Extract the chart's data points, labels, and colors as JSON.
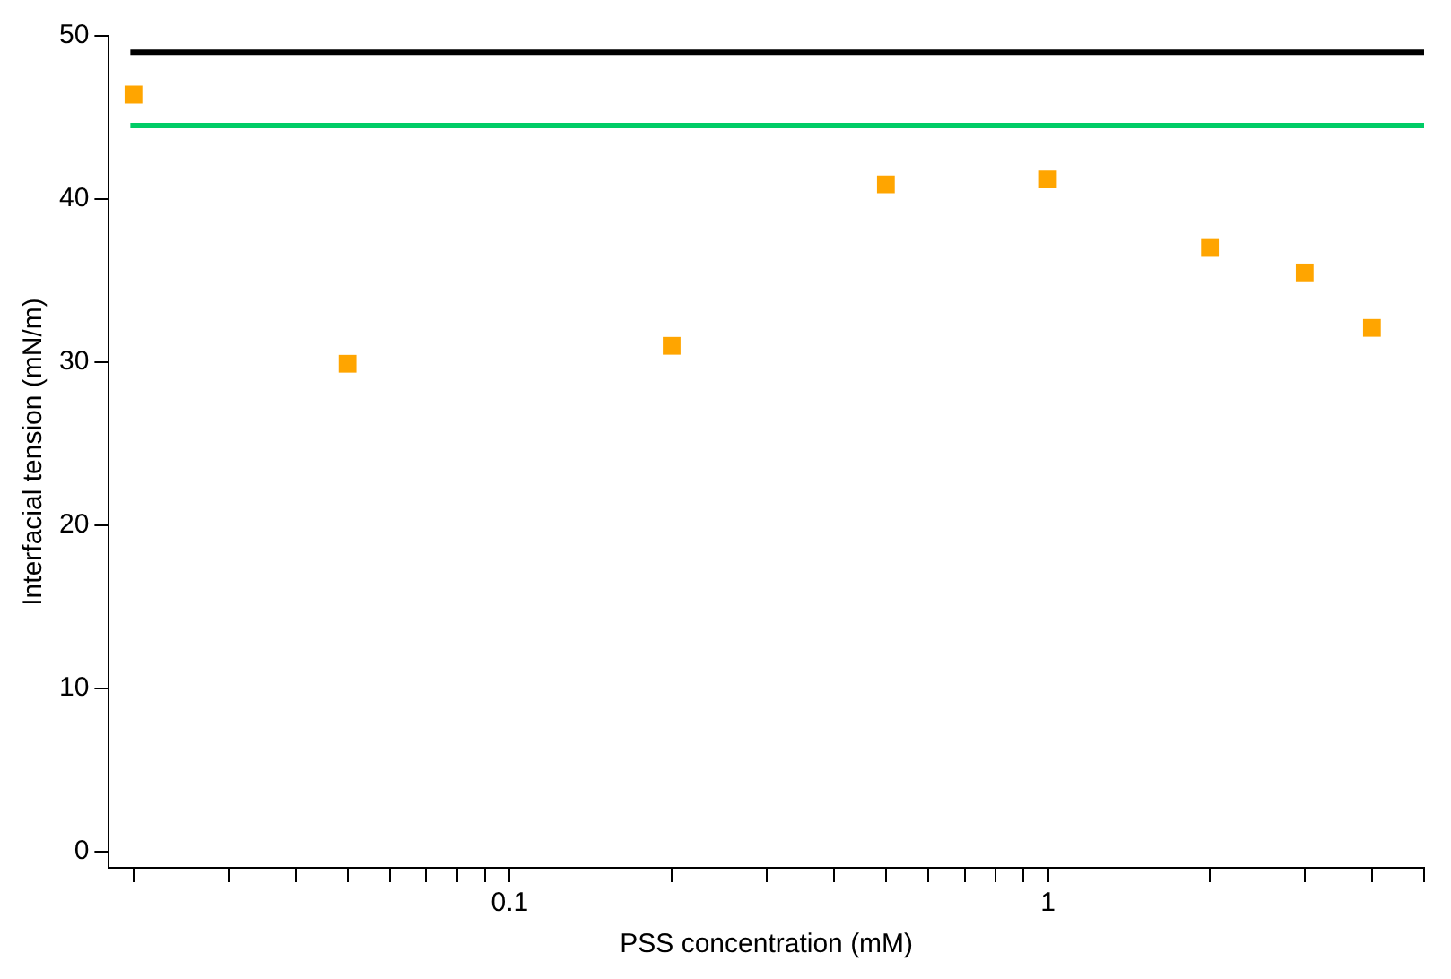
{
  "chart_data": {
    "type": "scatter",
    "xlabel": "PSS concentration (mM)",
    "ylabel": "Interfacial tension (mN/m)",
    "x": [
      0.02,
      0.05,
      0.2,
      0.5,
      1,
      2,
      3,
      4
    ],
    "series": [
      {
        "color": "#ffa500",
        "values": [
          46.4,
          29.9,
          31.0,
          40.9,
          41.2,
          37.0,
          35.5,
          32.1
        ]
      }
    ],
    "marker": "square",
    "log": "x",
    "grid": false,
    "legend": false,
    "xlim": [
      0.018,
      5
    ],
    "ylim": [
      -1,
      50
    ],
    "xticks": [
      {
        "value": 0.02,
        "label": null
      },
      {
        "value": 0.03,
        "label": null
      },
      {
        "value": 0.04,
        "label": null
      },
      {
        "value": 0.05,
        "label": null
      },
      {
        "value": 0.06,
        "label": null
      },
      {
        "value": 0.07,
        "label": null
      },
      {
        "value": 0.08,
        "label": null
      },
      {
        "value": 0.09,
        "label": null
      },
      0.1,
      {
        "value": 0.2,
        "label": null
      },
      {
        "value": 0.3,
        "label": null
      },
      {
        "value": 0.4,
        "label": null
      },
      {
        "value": 0.5,
        "label": null
      },
      {
        "value": 0.6,
        "label": null
      },
      {
        "value": 0.7,
        "label": null
      },
      {
        "value": 0.8,
        "label": null
      },
      {
        "value": 0.9,
        "label": null
      },
      1,
      {
        "value": 2,
        "label": null
      },
      {
        "value": 3,
        "label": null
      },
      {
        "value": 4,
        "label": null
      },
      {
        "value": 5,
        "label": null
      }
    ],
    "yticks": [
      0,
      10,
      20,
      30,
      40,
      50
    ],
    "ref_lines": [
      {
        "axis": "y",
        "value": 49.0,
        "color": "#000000"
      },
      {
        "axis": "y",
        "value": 44.5,
        "color": "#00cc66"
      }
    ]
  }
}
